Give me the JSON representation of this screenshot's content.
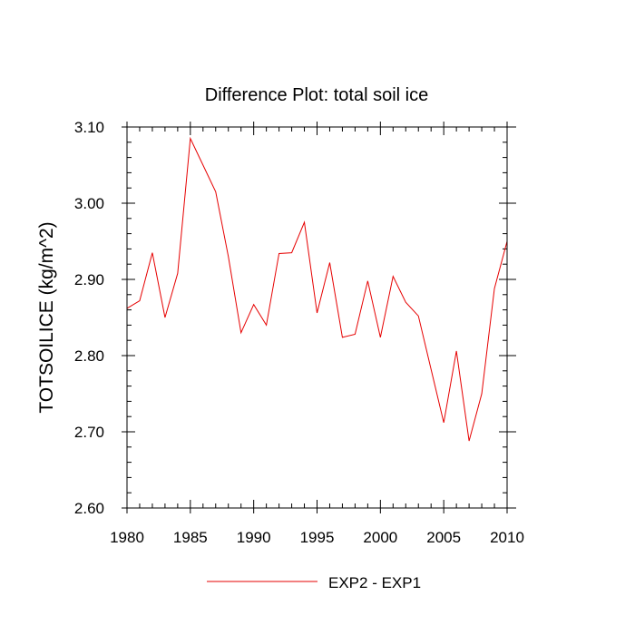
{
  "chart_data": {
    "type": "line",
    "title": "Difference Plot: total soil ice",
    "xlabel": "",
    "ylabel": "TOTSOILICE  (kg/m^2)",
    "xlim": [
      1980,
      2010
    ],
    "ylim": [
      2.6,
      3.1
    ],
    "xticks": [
      1980,
      1985,
      1990,
      1995,
      2000,
      2005,
      2010
    ],
    "xtick_labels": [
      "1980",
      "1985",
      "1990",
      "1995",
      "2000",
      "2005",
      "2010"
    ],
    "yticks": [
      2.6,
      2.7,
      2.8,
      2.9,
      3.0,
      3.1
    ],
    "ytick_labels": [
      "2.60",
      "2.70",
      "2.80",
      "2.90",
      "3.00",
      "3.10"
    ],
    "x_minor_step": 1,
    "y_minor_step": 0.02,
    "grid": false,
    "legend_position": "bottom-center",
    "series": [
      {
        "name": "EXP2 - EXP1",
        "color": "#e60000",
        "x": [
          1980,
          1981,
          1982,
          1983,
          1984,
          1985,
          1986,
          1987,
          1988,
          1989,
          1990,
          1991,
          1992,
          1993,
          1994,
          1995,
          1996,
          1997,
          1998,
          1999,
          2000,
          2001,
          2002,
          2003,
          2004,
          2005,
          2006,
          2007,
          2008,
          2009,
          2010
        ],
        "y": [
          2.862,
          2.872,
          2.935,
          2.85,
          2.908,
          3.085,
          3.05,
          3.015,
          2.93,
          2.83,
          2.867,
          2.84,
          2.934,
          2.935,
          2.975,
          2.856,
          2.922,
          2.824,
          2.828,
          2.898,
          2.824,
          2.904,
          2.87,
          2.852,
          2.782,
          2.712,
          2.806,
          2.688,
          2.75,
          2.888,
          2.95
        ]
      }
    ]
  }
}
